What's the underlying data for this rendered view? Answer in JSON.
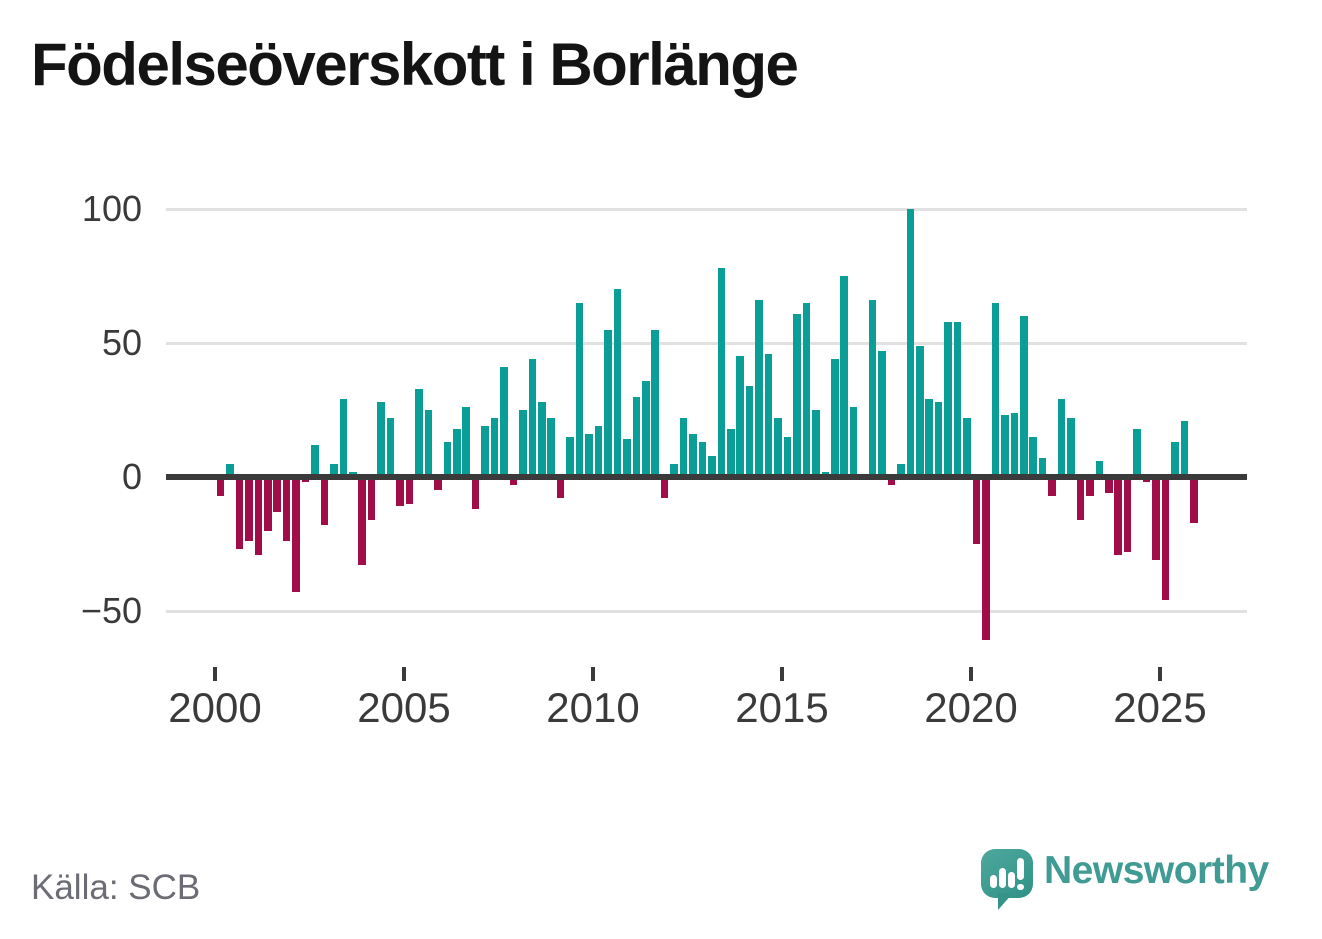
{
  "header": {
    "title": "Födelseöverskott i Borlänge"
  },
  "footer": {
    "source": "Källa: SCB",
    "brand": "Newsworthy"
  },
  "colors": {
    "positive": "#0a9e96",
    "negative": "#a00d49",
    "axis": "#3a3a3a",
    "grid": "#e1e1e1",
    "tick_label": "#3a3a3a",
    "title": "#141414",
    "source_text": "#6c6c75",
    "brand_text": "#3f9b93",
    "brand_bubble": "#3b988e"
  },
  "chart_data": {
    "type": "bar",
    "title": "Födelseöverskott i Borlänge",
    "xlabel": "",
    "ylabel": "",
    "grid": true,
    "ylim": [
      -70,
      110
    ],
    "y_ticks": [
      100,
      50,
      0,
      -50
    ],
    "y_tick_labels": [
      "100",
      "50",
      "0",
      "−50"
    ],
    "x_tick_years": [
      2000,
      2005,
      2010,
      2015,
      2020,
      2025
    ],
    "x_tick_labels": [
      "2000",
      "2005",
      "2010",
      "2015",
      "2020",
      "2025"
    ],
    "categories": [
      "2000 Q1",
      "2000 Q2",
      "2000 Q3",
      "2000 Q4",
      "2001 Q1",
      "2001 Q2",
      "2001 Q3",
      "2001 Q4",
      "2002 Q1",
      "2002 Q2",
      "2002 Q3",
      "2002 Q4",
      "2003 Q1",
      "2003 Q2",
      "2003 Q3",
      "2003 Q4",
      "2004 Q1",
      "2004 Q2",
      "2004 Q3",
      "2004 Q4",
      "2005 Q1",
      "2005 Q2",
      "2005 Q3",
      "2005 Q4",
      "2006 Q1",
      "2006 Q2",
      "2006 Q3",
      "2006 Q4",
      "2007 Q1",
      "2007 Q2",
      "2007 Q3",
      "2007 Q4",
      "2008 Q1",
      "2008 Q2",
      "2008 Q3",
      "2008 Q4",
      "2009 Q1",
      "2009 Q2",
      "2009 Q3",
      "2009 Q4",
      "2010 Q1",
      "2010 Q2",
      "2010 Q3",
      "2010 Q4",
      "2011 Q1",
      "2011 Q2",
      "2011 Q3",
      "2011 Q4",
      "2012 Q1",
      "2012 Q2",
      "2012 Q3",
      "2012 Q4",
      "2013 Q1",
      "2013 Q2",
      "2013 Q3",
      "2013 Q4",
      "2014 Q1",
      "2014 Q2",
      "2014 Q3",
      "2014 Q4",
      "2015 Q1",
      "2015 Q2",
      "2015 Q3",
      "2015 Q4",
      "2016 Q1",
      "2016 Q2",
      "2016 Q3",
      "2016 Q4",
      "2017 Q1",
      "2017 Q2",
      "2017 Q3",
      "2017 Q4",
      "2018 Q1",
      "2018 Q2",
      "2018 Q3",
      "2018 Q4",
      "2019 Q1",
      "2019 Q2",
      "2019 Q3",
      "2019 Q4",
      "2020 Q1",
      "2020 Q2",
      "2020 Q3",
      "2020 Q4",
      "2021 Q1",
      "2021 Q2",
      "2021 Q3",
      "2021 Q4",
      "2022 Q1",
      "2022 Q2",
      "2022 Q3",
      "2022 Q4",
      "2023 Q1",
      "2023 Q2",
      "2023 Q3",
      "2023 Q4",
      "2024 Q1",
      "2024 Q2",
      "2024 Q3",
      "2024 Q4",
      "2025 Q1",
      "2025 Q2",
      "2025 Q3",
      "2025 Q4"
    ],
    "values": [
      -7,
      5,
      -27,
      -24,
      -29,
      -20,
      -13,
      -24,
      -43,
      -2,
      12,
      -18,
      5,
      29,
      2,
      -33,
      -16,
      28,
      22,
      -11,
      -10,
      33,
      25,
      -5,
      13,
      18,
      26,
      -12,
      19,
      22,
      41,
      -3,
      25,
      44,
      28,
      22,
      -8,
      15,
      65,
      16,
      19,
      55,
      70,
      14,
      30,
      36,
      55,
      -8,
      5,
      22,
      16,
      13,
      8,
      78,
      18,
      45,
      34,
      66,
      46,
      22,
      15,
      61,
      65,
      25,
      2,
      44,
      75,
      26,
      -1,
      66,
      47,
      -3,
      5,
      100,
      49,
      29,
      28,
      58,
      58,
      22,
      -25,
      -61,
      65,
      23,
      24,
      60,
      15,
      7,
      -7,
      29,
      22,
      -16,
      -7,
      6,
      -6,
      -29,
      -28,
      18,
      -2,
      -31,
      -46,
      13,
      21,
      -17
    ]
  }
}
